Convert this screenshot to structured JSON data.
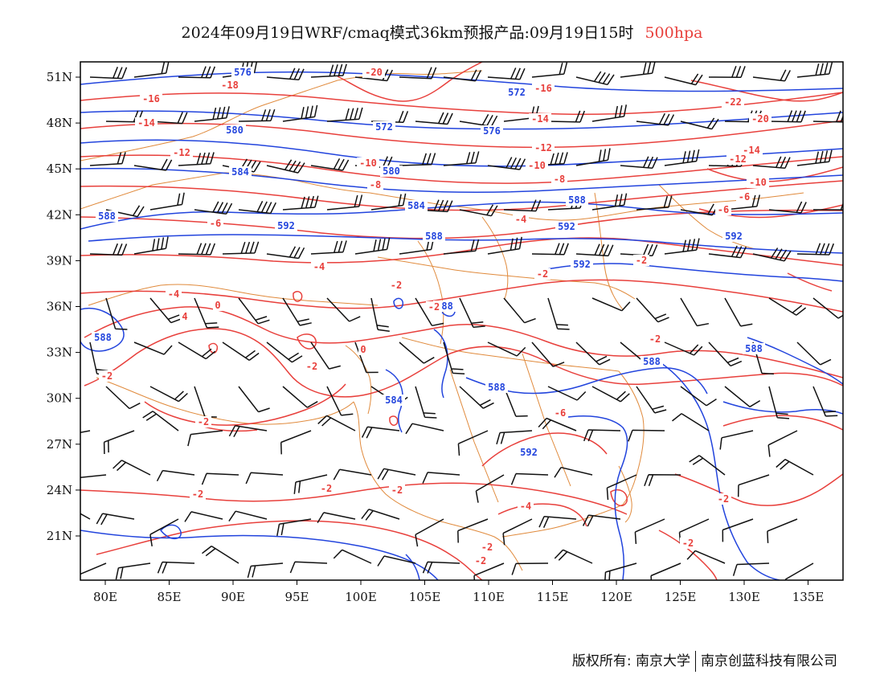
{
  "title": {
    "main": "2024年09月19日WRF/cmaq模式36km预报产品:09月19日15时",
    "level": "500hpa",
    "level_color": "#e8403c"
  },
  "axes": {
    "lon_labels": [
      "80E",
      "85E",
      "90E",
      "95E",
      "100E",
      "105E",
      "110E",
      "115E",
      "120E",
      "125E",
      "130E",
      "135E"
    ],
    "lat_labels": [
      "51N",
      "48N",
      "45N",
      "42N",
      "39N",
      "36N",
      "33N",
      "30N",
      "27N",
      "24N",
      "21N"
    ]
  },
  "colors": {
    "height_contour": "#2244dd",
    "temperature_contour": "#e8403c",
    "boundary": "#e08a3c",
    "wind_barb": "#111111"
  },
  "height_labels": [
    "576",
    "572",
    "580",
    "576",
    "572",
    "584",
    "580",
    "584",
    "588",
    "588",
    "592",
    "588",
    "592",
    "592",
    "592",
    "588",
    "588",
    "588",
    "588",
    "588",
    "584",
    "592"
  ],
  "temp_labels": [
    "-20",
    "-18",
    "-16",
    "-16",
    "-14",
    "-14",
    "-12",
    "-12",
    "-10",
    "-10",
    "-8",
    "-8",
    "-6",
    "-6",
    "-4",
    "-4",
    "-4",
    "-2",
    "-2",
    "-2",
    "-2",
    "-2",
    "0",
    "0",
    "4",
    "-14",
    "-20",
    "-22",
    "-12",
    "-10",
    "-6",
    "-2",
    "-2",
    "-2",
    "-2",
    "-4",
    "-6",
    "-2",
    "-2",
    "-2",
    "-2",
    "-2",
    "-2"
  ],
  "footer": {
    "left": "版权所有: 南京大学",
    "right": "南京创蓝科技有限公司"
  }
}
